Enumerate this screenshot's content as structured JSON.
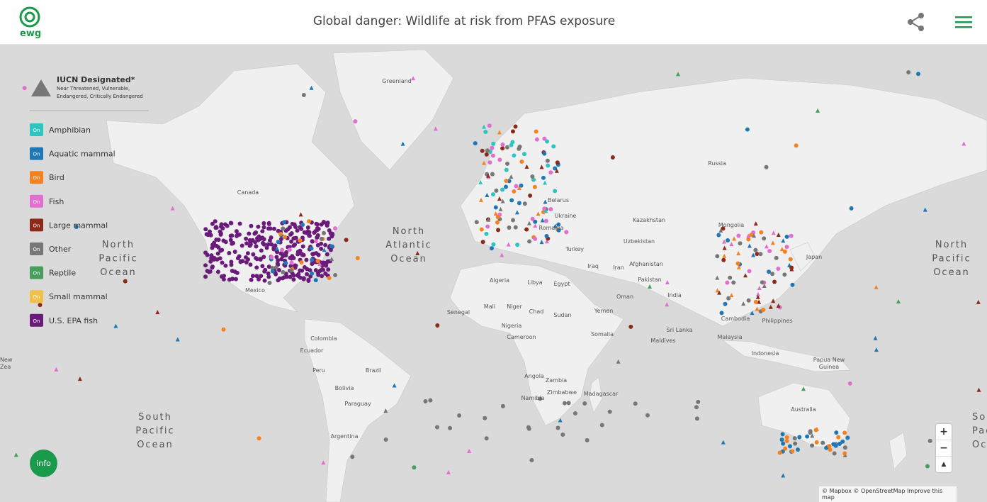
{
  "header": {
    "logo": "ewg",
    "title": "Global danger: Wildlife at risk from PFAS exposure"
  },
  "legend": {
    "title": "IUCN Designated*",
    "subtitle_lines": [
      "Near Threatened, Vulnerable,",
      "Endangered, Critically Endangered"
    ],
    "toggle": "On",
    "items": [
      {
        "label": "Amphibian",
        "color": "#2ec4c0"
      },
      {
        "label": "Aquatic mammal",
        "color": "#1f78b4"
      },
      {
        "label": "Bird",
        "color": "#f58220"
      },
      {
        "label": "Fish",
        "color": "#e26fcf"
      },
      {
        "label": "Large mammal",
        "color": "#8b2a1a"
      },
      {
        "label": "Other",
        "color": "#777777"
      },
      {
        "label": "Reptile",
        "color": "#4a9c5d"
      },
      {
        "label": "Small mammal",
        "color": "#f2c04a"
      },
      {
        "label": "U.S. EPA fish",
        "color": "#6a1b7a"
      }
    ]
  },
  "map": {
    "places": [
      "Greenland",
      "Canada",
      "Russia",
      "Belarus",
      "Ukraine",
      "Romania",
      "Kazakhstan",
      "Mongolia",
      "Uzbekistan",
      "Turkey",
      "Iraq",
      "Iran",
      "Afghanistan",
      "Pakistan",
      "India",
      "Oman",
      "Yemen",
      "Sudan",
      "Chad",
      "Niger",
      "Mali",
      "Algeria",
      "Libya",
      "Egypt",
      "Senegal",
      "Nigeria",
      "Cameroon",
      "Somalia",
      "Angola",
      "Zambia",
      "Zimbabwe",
      "Namibia",
      "Madagascar",
      "Sri Lanka",
      "Maldives",
      "Cambodia",
      "Philippines",
      "Malaysia",
      "Indonesia",
      "Papua New",
      "Guinea",
      "Australia",
      "Japan",
      "Mexico",
      "Colombia",
      "Ecuador",
      "Peru",
      "Brazil",
      "Bolivia",
      "Paraguay",
      "Argentina",
      "New",
      "Zea"
    ],
    "oceans": [
      [
        "North",
        "Pacific",
        "Ocean"
      ],
      [
        "North",
        "Atlantic",
        "Ocean"
      ],
      [
        "North",
        "Pacific",
        "Ocean"
      ],
      [
        "South",
        "Pacific",
        "Ocean"
      ],
      [
        "So",
        "Pac",
        "Oc"
      ]
    ]
  },
  "controls": {
    "info": "info",
    "zoom_in": "+",
    "zoom_out": "−",
    "compass": "▲"
  },
  "attribution": "© Mapbox © OpenStreetMap Improve this map"
}
